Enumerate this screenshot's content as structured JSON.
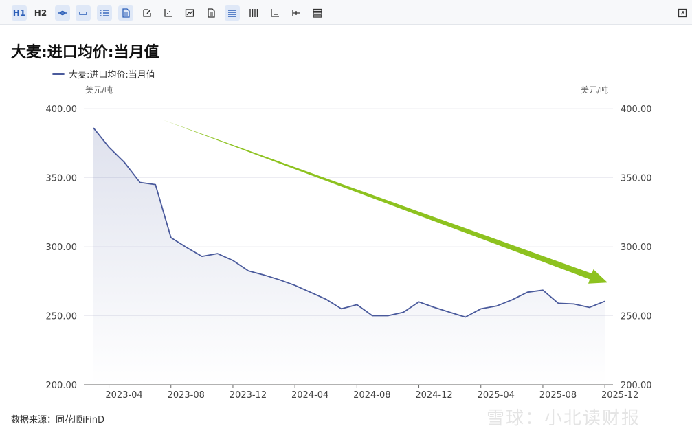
{
  "toolbar": {
    "buttons": [
      {
        "icon": "heading-1-icon",
        "label": "H1",
        "active": true
      },
      {
        "icon": "heading-2-icon",
        "label": "H2",
        "active": false
      },
      {
        "icon": "line-marker-icon",
        "active": true
      },
      {
        "icon": "bracket-icon",
        "active": true
      },
      {
        "icon": "list-icon",
        "active": true
      },
      {
        "icon": "document-icon",
        "active": true
      },
      {
        "icon": "edit-icon",
        "active": false
      },
      {
        "icon": "scatter-axis-icon",
        "active": false
      },
      {
        "icon": "image-chart-icon",
        "active": false
      },
      {
        "icon": "page-icon",
        "active": false
      },
      {
        "icon": "align-lines-icon",
        "active": true
      },
      {
        "icon": "vertical-bars-icon",
        "active": false
      },
      {
        "icon": "bar-axis-icon",
        "active": false
      },
      {
        "icon": "axis-marker-icon",
        "active": false
      },
      {
        "icon": "stack-icon",
        "active": false
      }
    ],
    "expand_icon": "expand-icon"
  },
  "chart_data": {
    "type": "area",
    "title": "大麦:进口均价:当月值",
    "series": [
      {
        "name": "大麦:进口均价:当月值",
        "color": "#4a5a9c",
        "values": [
          386,
          372,
          361,
          346.5,
          345,
          306.5,
          299.5,
          293,
          295,
          290,
          282.5,
          279.5,
          276,
          272,
          267,
          262,
          255,
          258,
          250,
          250,
          252.5,
          260,
          256,
          252.5,
          249,
          255,
          257,
          261.5,
          267,
          268.5,
          259,
          258.5,
          256,
          260.5
        ]
      }
    ],
    "x": [
      "2023-03",
      "2023-04",
      "2023-05",
      "2023-06",
      "2023-07",
      "2023-08",
      "2023-09",
      "2023-10",
      "2023-11",
      "2023-12",
      "2024-01",
      "2024-02",
      "2024-03",
      "2024-04",
      "2024-05",
      "2024-06",
      "2024-07",
      "2024-08",
      "2024-09",
      "2024-10",
      "2024-11",
      "2024-12",
      "2025-01",
      "2025-02",
      "2025-03",
      "2025-04",
      "2025-05",
      "2025-06",
      "2025-07",
      "2025-08",
      "2025-09",
      "2025-10",
      "2025-11",
      "2025-12"
    ],
    "x_tick_labels": [
      "2023-04",
      "2023-08",
      "2023-12",
      "2024-04",
      "2024-08",
      "2024-12",
      "2025-04",
      "2025-08",
      "2025-12"
    ],
    "y_ticks": [
      "400.00",
      "350.00",
      "300.00",
      "250.00",
      "200.00"
    ],
    "ylim": [
      200,
      400
    ],
    "y_unit_left": "美元/吨",
    "y_unit_right": "美元/吨",
    "legend_position": "top-left",
    "grid": true,
    "trend_arrow": {
      "color": "#8dc21f",
      "from": {
        "x": "2023-07",
        "y": 392
      },
      "to": {
        "x": "2025-12",
        "y": 274
      }
    }
  },
  "source": "数据来源：同花顺iFinD",
  "watermark": "雪球：小北读财报"
}
